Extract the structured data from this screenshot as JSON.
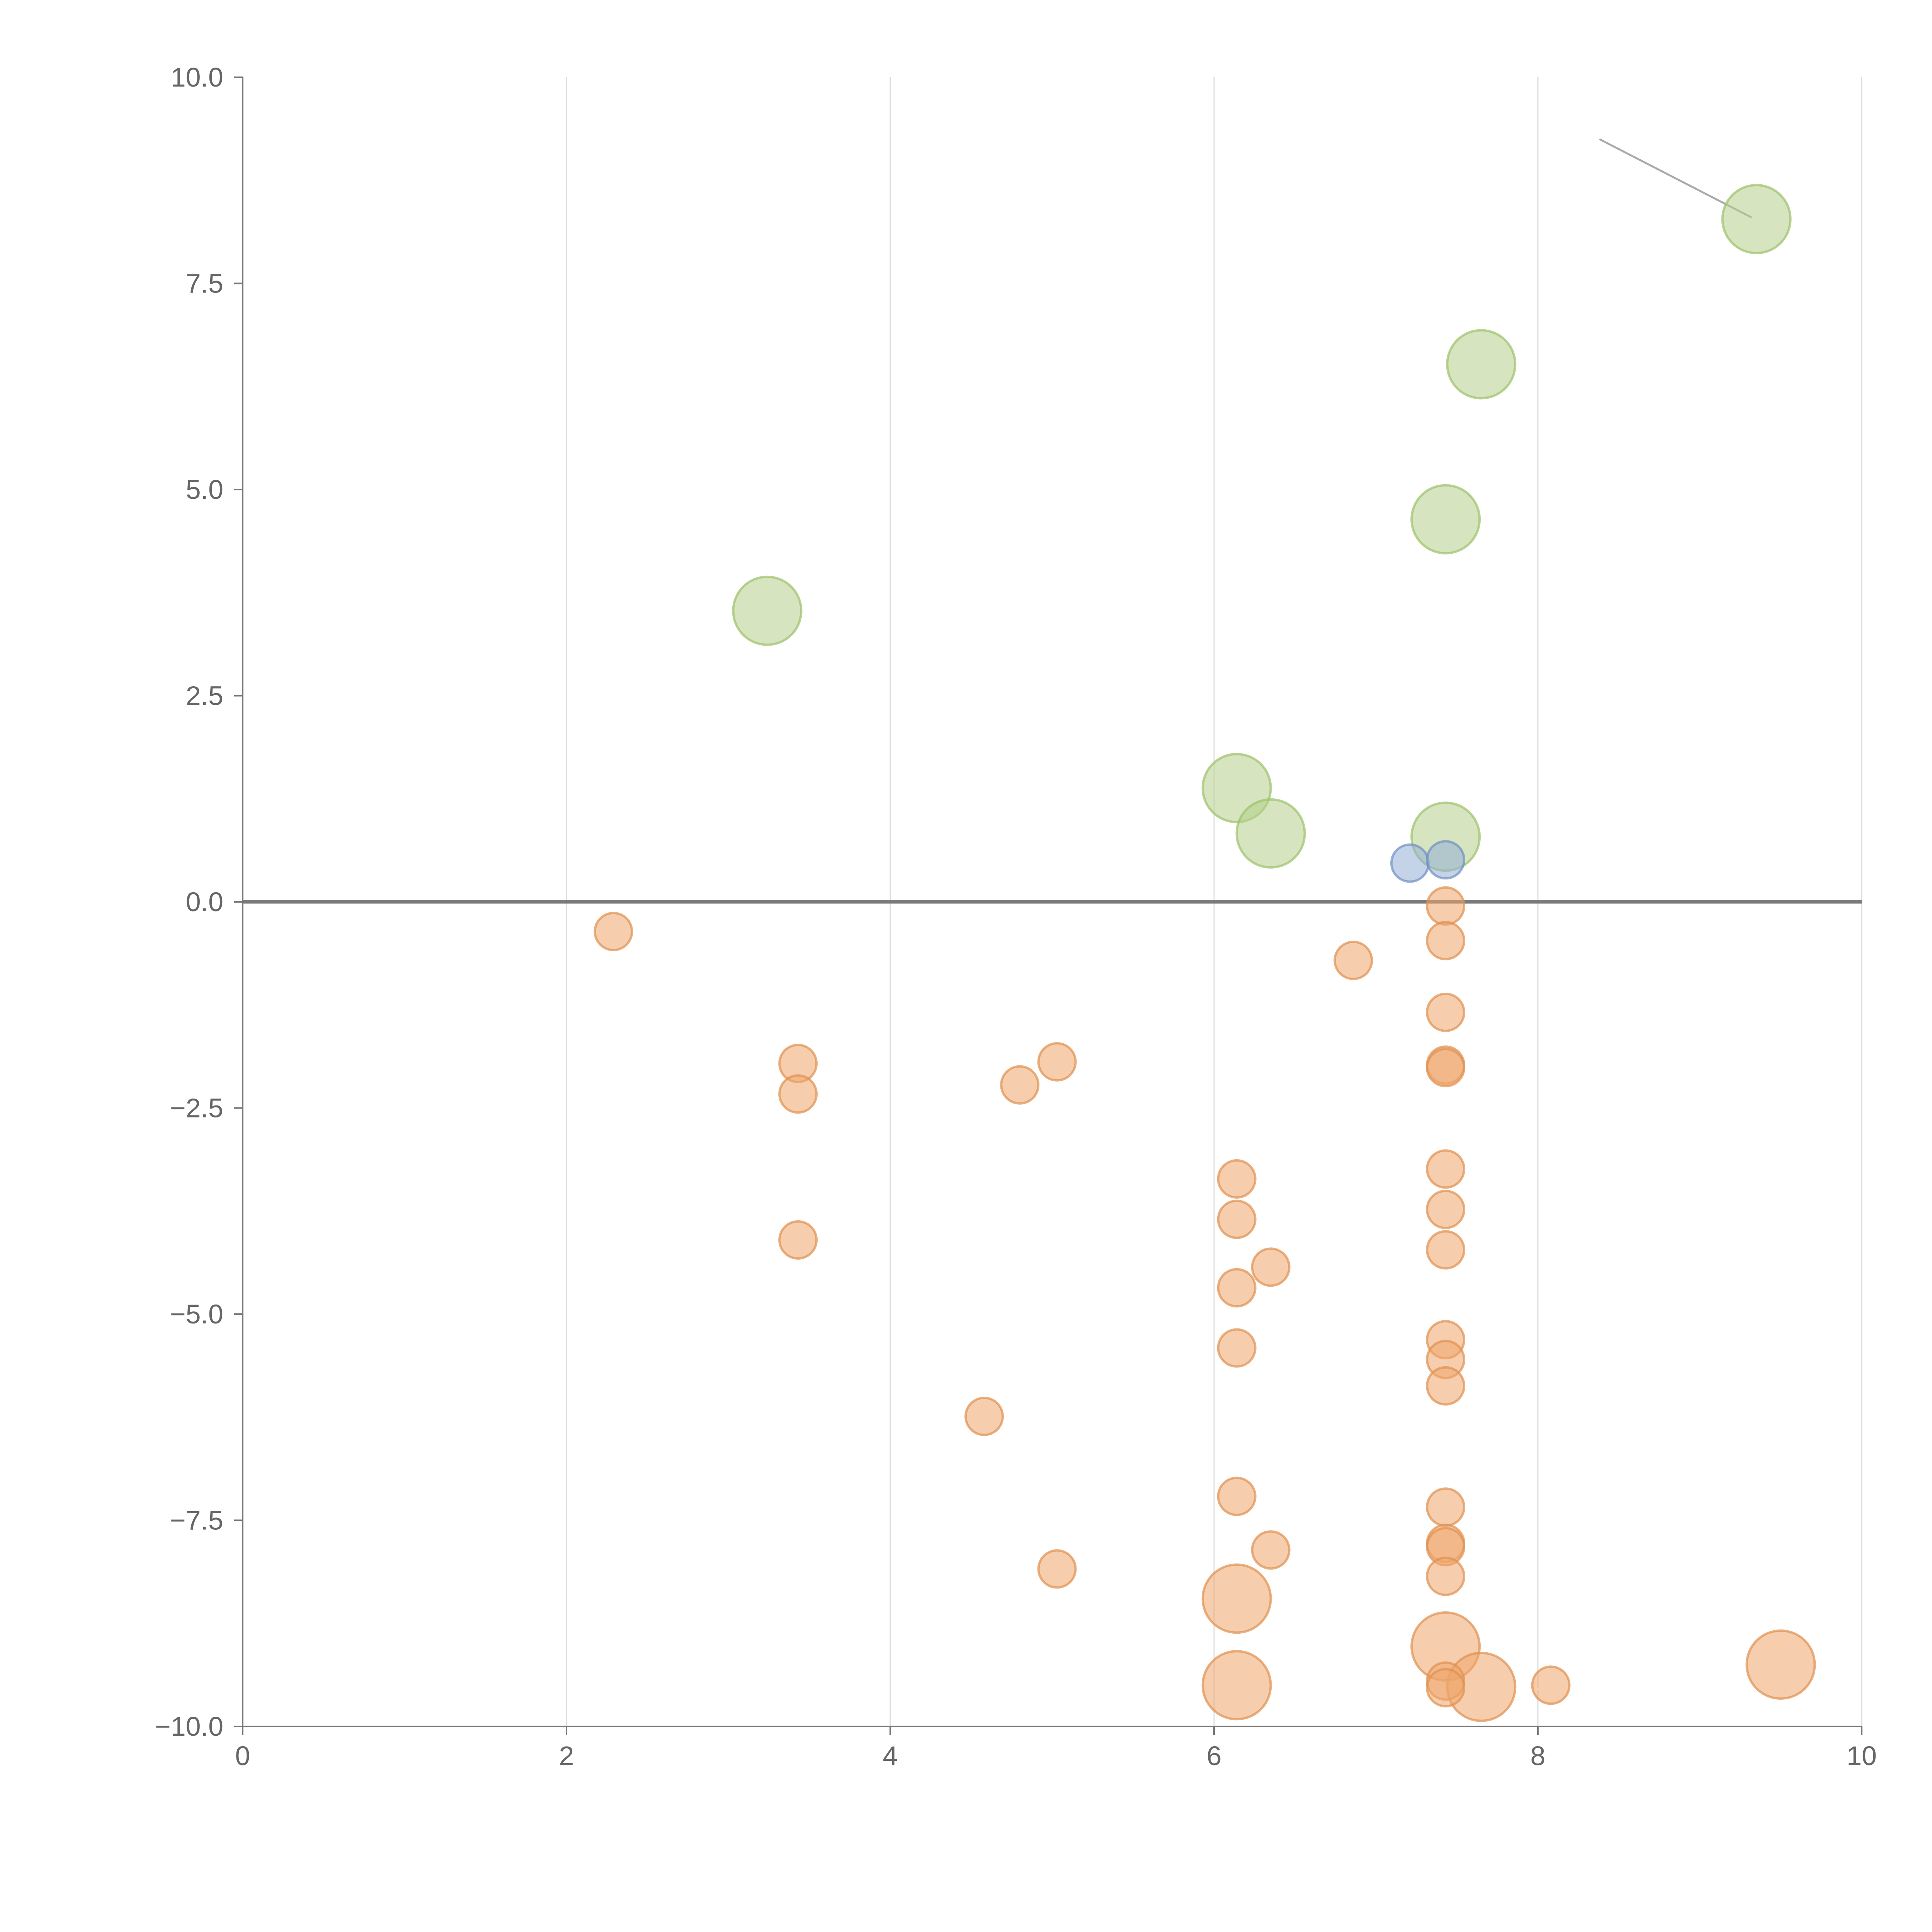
{
  "chart_data": {
    "type": "scatter",
    "title": "",
    "xlabel": "",
    "ylabel": "",
    "xlim": [
      0,
      10
    ],
    "ylim": [
      -10,
      10
    ],
    "xticks": [
      0,
      2,
      4,
      6,
      8,
      10
    ],
    "yticks": [
      -10,
      -7.5,
      -5,
      -2.5,
      0,
      2.5,
      5,
      7.5,
      10
    ],
    "ytick_labels": [
      "−10.0",
      "−7.5",
      "−5.0",
      "−2.5",
      "0.0",
      "2.5",
      "5.0",
      "7.5",
      "10.0"
    ],
    "xtick_labels": [
      "0",
      "2",
      "4",
      "6",
      "8",
      "10"
    ],
    "grid": "vertical",
    "zero_line": true,
    "colors": {
      "green": {
        "fill": "#b5d08a",
        "stroke": "#9cc06a"
      },
      "blue": {
        "fill": "#95afd6",
        "stroke": "#6d8fc4"
      },
      "orange": {
        "fill": "#eea66c",
        "stroke": "#e0904e"
      }
    },
    "series": [
      {
        "name": "green",
        "color": "green",
        "size": "large",
        "points": [
          {
            "x": 9.35,
            "y": 8.28
          },
          {
            "x": 7.65,
            "y": 6.52
          },
          {
            "x": 7.43,
            "y": 4.64
          },
          {
            "x": 3.24,
            "y": 3.53
          },
          {
            "x": 6.14,
            "y": 1.38
          },
          {
            "x": 6.35,
            "y": 0.83
          },
          {
            "x": 7.43,
            "y": 0.79
          }
        ]
      },
      {
        "name": "blue",
        "color": "blue",
        "size": "small",
        "points": [
          {
            "x": 7.21,
            "y": 0.47
          },
          {
            "x": 7.43,
            "y": 0.51
          }
        ]
      },
      {
        "name": "orange-large",
        "color": "orange",
        "size": "large",
        "points": [
          {
            "x": 6.14,
            "y": -8.45
          },
          {
            "x": 7.43,
            "y": -9.03
          },
          {
            "x": 9.5,
            "y": -9.25
          },
          {
            "x": 6.14,
            "y": -9.5
          },
          {
            "x": 7.65,
            "y": -9.52
          }
        ]
      },
      {
        "name": "orange",
        "color": "orange",
        "size": "small",
        "points": [
          {
            "x": 2.29,
            "y": -0.36
          },
          {
            "x": 7.43,
            "y": -0.05
          },
          {
            "x": 7.43,
            "y": -0.47
          },
          {
            "x": 6.86,
            "y": -0.71
          },
          {
            "x": 7.43,
            "y": -1.34
          },
          {
            "x": 3.43,
            "y": -1.96
          },
          {
            "x": 5.03,
            "y": -1.94
          },
          {
            "x": 7.43,
            "y": -1.98
          },
          {
            "x": 7.43,
            "y": -2.01
          },
          {
            "x": 4.8,
            "y": -2.22
          },
          {
            "x": 3.43,
            "y": -2.33
          },
          {
            "x": 6.14,
            "y": -3.36
          },
          {
            "x": 7.43,
            "y": -3.24
          },
          {
            "x": 7.43,
            "y": -3.73
          },
          {
            "x": 6.14,
            "y": -3.85
          },
          {
            "x": 3.43,
            "y": -4.1
          },
          {
            "x": 7.43,
            "y": -4.22
          },
          {
            "x": 6.35,
            "y": -4.43
          },
          {
            "x": 6.14,
            "y": -4.68
          },
          {
            "x": 7.43,
            "y": -5.31
          },
          {
            "x": 6.14,
            "y": -5.41
          },
          {
            "x": 7.43,
            "y": -5.55
          },
          {
            "x": 7.43,
            "y": -5.87
          },
          {
            "x": 4.58,
            "y": -6.24
          },
          {
            "x": 6.14,
            "y": -7.21
          },
          {
            "x": 7.43,
            "y": -7.34
          },
          {
            "x": 7.43,
            "y": -7.78
          },
          {
            "x": 7.43,
            "y": -7.82
          },
          {
            "x": 6.35,
            "y": -7.86
          },
          {
            "x": 5.03,
            "y": -8.09
          },
          {
            "x": 7.43,
            "y": -8.18
          },
          {
            "x": 7.43,
            "y": -9.45
          },
          {
            "x": 7.43,
            "y": -9.53
          },
          {
            "x": 8.08,
            "y": -9.5
          }
        ]
      }
    ],
    "leader_lines": [
      {
        "x1": 9.32,
        "y1": 8.3,
        "x2": 8.38,
        "y2": 9.25,
        "color": "#aaaaaa"
      },
      {
        "x1": 7.47,
        "y1": 4.68,
        "x2": 7.72,
        "y2": 4.85,
        "color": "#ffffff"
      },
      {
        "x1": 6.16,
        "y1": 1.45,
        "x2": 6.2,
        "y2": 1.78,
        "color": "#ffffff"
      },
      {
        "x1": 7.47,
        "y1": 0.8,
        "x2": 7.78,
        "y2": 0.88,
        "color": "#ffffff"
      },
      {
        "x1": 6.17,
        "y1": -8.37,
        "x2": 6.4,
        "y2": -7.55,
        "color": "#ffffff"
      },
      {
        "x1": 7.46,
        "y1": -8.95,
        "x2": 7.62,
        "y2": -8.65,
        "color": "#ffffff"
      },
      {
        "x1": 9.48,
        "y1": -9.18,
        "x2": 9.47,
        "y2": -8.85,
        "color": "#ffffff"
      },
      {
        "x1": 6.18,
        "y1": -9.49,
        "x2": 6.32,
        "y2": -9.42,
        "color": "#ffffff"
      },
      {
        "x1": 7.7,
        "y1": -9.51,
        "x2": 8.05,
        "y2": -9.55,
        "color": "#ffffff"
      }
    ]
  }
}
